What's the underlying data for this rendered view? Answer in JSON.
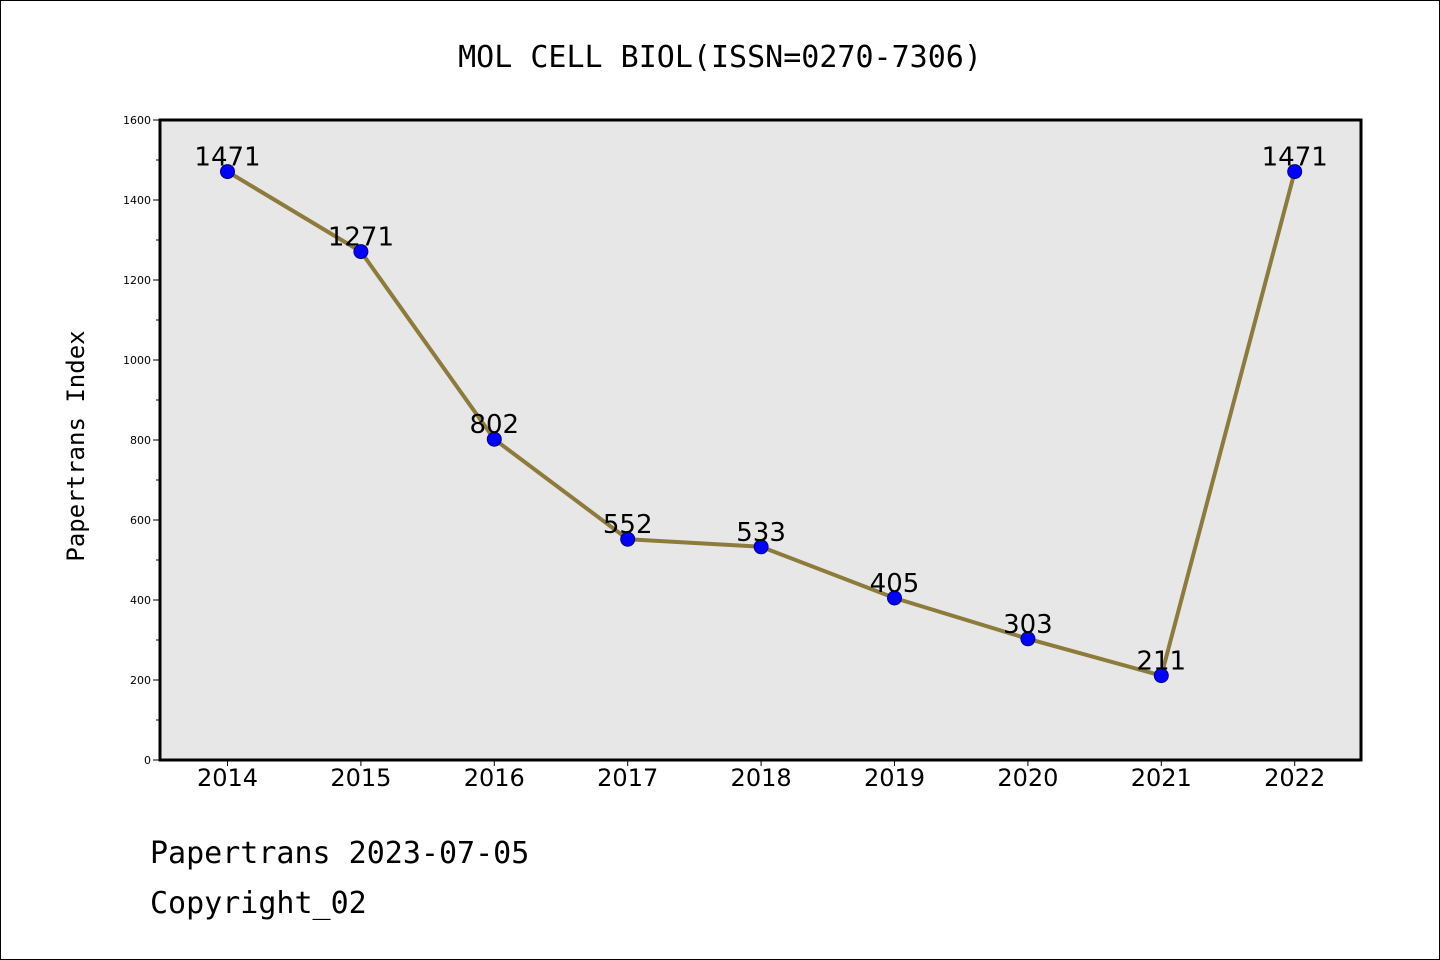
{
  "colors": {
    "plot_background": "#e7e7e7",
    "line": "#8c7b3b",
    "marker": "#0000ff"
  },
  "chart_data": {
    "type": "line",
    "title": "MOL CELL BIOL(ISSN=0270-7306)",
    "xlabel": "",
    "ylabel": "Papertrans Index",
    "categories": [
      "2014",
      "2015",
      "2016",
      "2017",
      "2018",
      "2019",
      "2020",
      "2021",
      "2022"
    ],
    "series": [
      {
        "values": [
          1471,
          1271,
          802,
          552,
          533,
          405,
          303,
          211,
          1471
        ]
      }
    ],
    "ylim": [
      0,
      1600
    ],
    "y_ticks": [
      "0",
      "200",
      "400",
      "600",
      "800",
      "1000",
      "1200",
      "1400",
      "1600"
    ],
    "grid": false,
    "legend": "none"
  },
  "footer": {
    "date_line": "Papertrans 2023-07-05",
    "copyright_line": "Copyright_02"
  }
}
